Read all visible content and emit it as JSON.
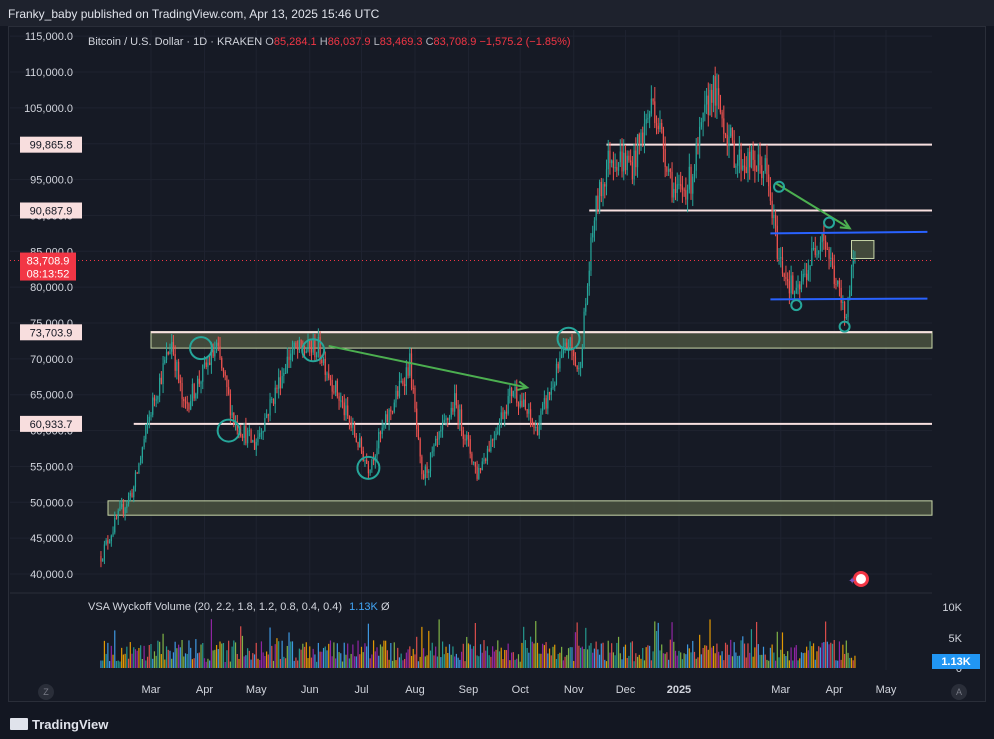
{
  "header": {
    "publish_line": "Franky_baby published on TradingView.com, Apr 13, 2025 15:46 UTC"
  },
  "legend": {
    "symbol": "Bitcoin / U.S. Dollar · 1D · KRAKEN",
    "open_label": "O",
    "open": "85,284.1",
    "high_label": "H",
    "high": "86,037.9",
    "low_label": "L",
    "low": "83,469.3",
    "close_label": "C",
    "close": "83,708.9",
    "change": "−1,575.2 (−1.85%)"
  },
  "volume_pane": {
    "indicator": "VSA Wyckoff Volume (20, 2.2, 1.8, 1.2, 0.8, 0.4, 0.4)",
    "last_value": "1.13K",
    "symbol": "Ø",
    "axis_ticks": [
      "10K",
      "5K",
      "0"
    ],
    "last_badge": "1.13K"
  },
  "footer": {
    "brand": "TradingView",
    "z_button": "Z",
    "a_button": "A"
  },
  "colors": {
    "up": "#26a69a",
    "down": "#ef5350",
    "zone_fill": "#4a5240",
    "level_line": "#f8e0e0",
    "channel": "#2962ff",
    "arrow": "#4caf50",
    "circle": "#26a69a",
    "price_badge": "#f23645"
  },
  "chart_data": {
    "type": "candlestick",
    "interval": "1D",
    "price_axis": {
      "ticks": [
        115000,
        110000,
        105000,
        100000,
        95000,
        90000,
        85000,
        80000,
        75000,
        70000,
        65000,
        60000,
        55000,
        50000,
        45000,
        40000
      ],
      "tick_labels": [
        "115,000.0",
        "110,000.0",
        "105,000.0",
        "100,000.0",
        "95,000.0",
        "90,000.0",
        "85,000.0",
        "80,000.0",
        "75,000.0",
        "70,000.0",
        "65,000.0",
        "60,000.0",
        "55,000.0",
        "50,000.0",
        "45,000.0",
        "40,000.0"
      ]
    },
    "time_axis": {
      "labels": [
        "Mar",
        "Apr",
        "May",
        "Jun",
        "Jul",
        "Aug",
        "Sep",
        "Oct",
        "Nov",
        "Dec",
        "2025",
        "Mar",
        "Apr",
        "May"
      ]
    },
    "last_price": {
      "value": 83708.9,
      "label": "83,708.9",
      "countdown": "08:13:52"
    },
    "horizontal_levels": [
      {
        "value": 99865.8,
        "label": "99,865.8"
      },
      {
        "value": 90687.9,
        "label": "90,687.9"
      },
      {
        "value": 73703.9,
        "label": "73,703.9"
      },
      {
        "value": 60933.7,
        "label": "60,933.7"
      }
    ],
    "zones": [
      {
        "from": 71500,
        "to": 73800,
        "start": "2024-03-01",
        "end": "2025-05-31"
      },
      {
        "from": 48200,
        "to": 50200,
        "start": "2024-02-01",
        "end": "2025-05-31"
      },
      {
        "from": 84000,
        "to": 86500,
        "start": "2025-04-11",
        "end": "2025-04-24"
      }
    ],
    "channel_lines": [
      {
        "name": "upper",
        "start": [
          "2025-02-23",
          87500
        ],
        "end": [
          "2025-05-25",
          87700
        ]
      },
      {
        "name": "lower",
        "start": [
          "2025-02-23",
          78300
        ],
        "end": [
          "2025-05-25",
          78400
        ]
      }
    ],
    "arrows": [
      {
        "start": [
          "2024-06-12",
          71800
        ],
        "end": [
          "2024-10-05",
          66000
        ]
      },
      {
        "start": [
          "2025-02-26",
          94500
        ],
        "end": [
          "2025-04-10",
          88200
        ]
      }
    ],
    "circles": [
      {
        "date": "2024-03-30",
        "price": 71500,
        "r": "large"
      },
      {
        "date": "2024-04-15",
        "price": 60000,
        "r": "large"
      },
      {
        "date": "2024-06-03",
        "price": 71200,
        "r": "large"
      },
      {
        "date": "2024-07-05",
        "price": 54800,
        "r": "large"
      },
      {
        "date": "2024-10-29",
        "price": 72800,
        "r": "large"
      },
      {
        "date": "2025-02-28",
        "price": 94000,
        "r": "small"
      },
      {
        "date": "2025-03-10",
        "price": 77500,
        "r": "small"
      },
      {
        "date": "2025-03-29",
        "price": 89000,
        "r": "small"
      },
      {
        "date": "2025-04-07",
        "price": 74500,
        "r": "small"
      }
    ],
    "anchors": [
      {
        "date": "2024-02-01",
        "close": 42500
      },
      {
        "date": "2024-02-10",
        "close": 47500
      },
      {
        "date": "2024-02-20",
        "close": 52000
      },
      {
        "date": "2024-03-01",
        "close": 63000
      },
      {
        "date": "2024-03-13",
        "close": 72500
      },
      {
        "date": "2024-03-20",
        "close": 63000
      },
      {
        "date": "2024-04-08",
        "close": 71500
      },
      {
        "date": "2024-04-18",
        "close": 61500
      },
      {
        "date": "2024-04-30",
        "close": 58000
      },
      {
        "date": "2024-05-21",
        "close": 71000
      },
      {
        "date": "2024-06-06",
        "close": 71500
      },
      {
        "date": "2024-06-25",
        "close": 60500
      },
      {
        "date": "2024-07-05",
        "close": 55000
      },
      {
        "date": "2024-07-29",
        "close": 69500
      },
      {
        "date": "2024-08-05",
        "close": 53000
      },
      {
        "date": "2024-08-24",
        "close": 64000
      },
      {
        "date": "2024-09-06",
        "close": 54000
      },
      {
        "date": "2024-09-27",
        "close": 66000
      },
      {
        "date": "2024-10-10",
        "close": 60000
      },
      {
        "date": "2024-10-29",
        "close": 72500
      },
      {
        "date": "2024-11-04",
        "close": 68000
      },
      {
        "date": "2024-11-13",
        "close": 90000
      },
      {
        "date": "2024-11-22",
        "close": 98500
      },
      {
        "date": "2024-12-05",
        "close": 97000
      },
      {
        "date": "2024-12-17",
        "close": 106000
      },
      {
        "date": "2024-12-30",
        "close": 92500
      },
      {
        "date": "2025-01-08",
        "close": 95000
      },
      {
        "date": "2025-01-20",
        "close": 108000
      },
      {
        "date": "2025-02-03",
        "close": 98000
      },
      {
        "date": "2025-02-20",
        "close": 96500
      },
      {
        "date": "2025-02-28",
        "close": 84000
      },
      {
        "date": "2025-03-10",
        "close": 78500
      },
      {
        "date": "2025-03-25",
        "close": 88000
      },
      {
        "date": "2025-04-07",
        "close": 76000
      },
      {
        "date": "2025-04-13",
        "close": 83708.9
      }
    ]
  }
}
